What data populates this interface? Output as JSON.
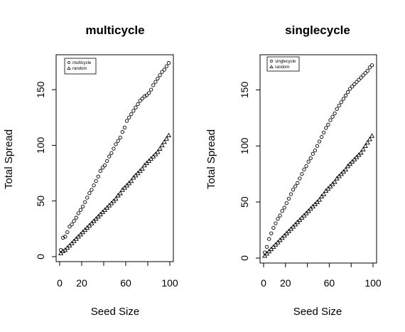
{
  "chart_data": [
    {
      "type": "scatter",
      "title": "multicycle",
      "xlabel": "Seed Size",
      "ylabel": "Total Spread",
      "xlim": [
        0,
        100
      ],
      "ylim": [
        0,
        175
      ],
      "xticks": [
        0,
        20,
        60,
        100
      ],
      "yticks": [
        0,
        50,
        100,
        150
      ],
      "legend_position": "top-left",
      "series": [
        {
          "name": "multicycle",
          "marker": "circle",
          "points": [
            [
              1,
              6
            ],
            [
              3,
              17
            ],
            [
              5,
              18
            ],
            [
              7,
              22
            ],
            [
              9,
              27
            ],
            [
              11,
              29
            ],
            [
              13,
              32
            ],
            [
              15,
              35
            ],
            [
              17,
              39
            ],
            [
              19,
              42
            ],
            [
              21,
              45
            ],
            [
              23,
              49
            ],
            [
              25,
              53
            ],
            [
              27,
              57
            ],
            [
              29,
              60
            ],
            [
              31,
              64
            ],
            [
              33,
              68
            ],
            [
              35,
              72
            ],
            [
              37,
              77
            ],
            [
              39,
              80
            ],
            [
              41,
              82
            ],
            [
              43,
              86
            ],
            [
              45,
              90
            ],
            [
              47,
              93
            ],
            [
              49,
              97
            ],
            [
              51,
              101
            ],
            [
              53,
              104
            ],
            [
              55,
              107
            ],
            [
              57,
              112
            ],
            [
              59,
              116
            ],
            [
              61,
              122
            ],
            [
              63,
              125
            ],
            [
              65,
              128
            ],
            [
              67,
              131
            ],
            [
              69,
              134
            ],
            [
              71,
              137
            ],
            [
              73,
              140
            ],
            [
              75,
              142
            ],
            [
              77,
              144
            ],
            [
              79,
              145
            ],
            [
              81,
              147
            ],
            [
              83,
              150
            ],
            [
              85,
              154
            ],
            [
              87,
              157
            ],
            [
              89,
              160
            ],
            [
              91,
              163
            ],
            [
              93,
              166
            ],
            [
              95,
              168
            ],
            [
              97,
              171
            ],
            [
              99,
              174
            ]
          ]
        },
        {
          "name": "random",
          "marker": "triangle",
          "points": [
            [
              1,
              3
            ],
            [
              3,
              5
            ],
            [
              5,
              6
            ],
            [
              7,
              8
            ],
            [
              9,
              10
            ],
            [
              11,
              12
            ],
            [
              13,
              14
            ],
            [
              15,
              16
            ],
            [
              17,
              18
            ],
            [
              19,
              20
            ],
            [
              21,
              22
            ],
            [
              23,
              24
            ],
            [
              25,
              26
            ],
            [
              27,
              28
            ],
            [
              29,
              30
            ],
            [
              31,
              32
            ],
            [
              33,
              34
            ],
            [
              35,
              36
            ],
            [
              37,
              38
            ],
            [
              39,
              40
            ],
            [
              41,
              42
            ],
            [
              43,
              44
            ],
            [
              45,
              46
            ],
            [
              47,
              48
            ],
            [
              49,
              50
            ],
            [
              51,
              52
            ],
            [
              53,
              55
            ],
            [
              55,
              57
            ],
            [
              57,
              60
            ],
            [
              59,
              62
            ],
            [
              61,
              64
            ],
            [
              63,
              66
            ],
            [
              65,
              68
            ],
            [
              67,
              71
            ],
            [
              69,
              73
            ],
            [
              71,
              75
            ],
            [
              73,
              77
            ],
            [
              75,
              79
            ],
            [
              77,
              82
            ],
            [
              79,
              84
            ],
            [
              81,
              86
            ],
            [
              83,
              88
            ],
            [
              85,
              90
            ],
            [
              87,
              92
            ],
            [
              89,
              94
            ],
            [
              91,
              97
            ],
            [
              93,
              100
            ],
            [
              95,
              103
            ],
            [
              97,
              106
            ],
            [
              99,
              109
            ]
          ]
        }
      ]
    },
    {
      "type": "scatter",
      "title": "singlecycle",
      "xlabel": "Seed Size",
      "ylabel": "Total Spread",
      "xlim": [
        0,
        100
      ],
      "ylim": [
        0,
        175
      ],
      "xticks": [
        0,
        20,
        60,
        100
      ],
      "yticks": [
        0,
        50,
        100,
        150
      ],
      "legend_position": "top-left",
      "series": [
        {
          "name": "singlecycle",
          "marker": "circle",
          "points": [
            [
              1,
              5
            ],
            [
              3,
              10
            ],
            [
              5,
              17
            ],
            [
              7,
              22
            ],
            [
              9,
              27
            ],
            [
              11,
              31
            ],
            [
              13,
              35
            ],
            [
              15,
              38
            ],
            [
              17,
              42
            ],
            [
              19,
              45
            ],
            [
              21,
              49
            ],
            [
              23,
              53
            ],
            [
              25,
              57
            ],
            [
              27,
              61
            ],
            [
              29,
              64
            ],
            [
              31,
              67
            ],
            [
              33,
              71
            ],
            [
              35,
              75
            ],
            [
              37,
              79
            ],
            [
              39,
              82
            ],
            [
              41,
              86
            ],
            [
              43,
              89
            ],
            [
              45,
              93
            ],
            [
              47,
              96
            ],
            [
              49,
              100
            ],
            [
              51,
              104
            ],
            [
              53,
              108
            ],
            [
              55,
              112
            ],
            [
              57,
              116
            ],
            [
              59,
              119
            ],
            [
              61,
              123
            ],
            [
              63,
              126
            ],
            [
              65,
              129
            ],
            [
              67,
              133
            ],
            [
              69,
              136
            ],
            [
              71,
              139
            ],
            [
              73,
              142
            ],
            [
              75,
              145
            ],
            [
              77,
              148
            ],
            [
              79,
              151
            ],
            [
              81,
              153
            ],
            [
              83,
              155
            ],
            [
              85,
              157
            ],
            [
              87,
              159
            ],
            [
              89,
              161
            ],
            [
              91,
              163
            ],
            [
              93,
              165
            ],
            [
              95,
              167
            ],
            [
              97,
              170
            ],
            [
              99,
              172
            ]
          ]
        },
        {
          "name": "random",
          "marker": "triangle",
          "points": [
            [
              1,
              2
            ],
            [
              3,
              4
            ],
            [
              5,
              6
            ],
            [
              7,
              8
            ],
            [
              9,
              10
            ],
            [
              11,
              12
            ],
            [
              13,
              14
            ],
            [
              15,
              16
            ],
            [
              17,
              18
            ],
            [
              19,
              20
            ],
            [
              21,
              22
            ],
            [
              23,
              24
            ],
            [
              25,
              26
            ],
            [
              27,
              28
            ],
            [
              29,
              30
            ],
            [
              31,
              32
            ],
            [
              33,
              34
            ],
            [
              35,
              36
            ],
            [
              37,
              38
            ],
            [
              39,
              40
            ],
            [
              41,
              42
            ],
            [
              43,
              44
            ],
            [
              45,
              46
            ],
            [
              47,
              48
            ],
            [
              49,
              50
            ],
            [
              51,
              52
            ],
            [
              53,
              55
            ],
            [
              55,
              57
            ],
            [
              57,
              60
            ],
            [
              59,
              62
            ],
            [
              61,
              64
            ],
            [
              63,
              66
            ],
            [
              65,
              68
            ],
            [
              67,
              71
            ],
            [
              69,
              73
            ],
            [
              71,
              75
            ],
            [
              73,
              77
            ],
            [
              75,
              79
            ],
            [
              77,
              82
            ],
            [
              79,
              84
            ],
            [
              81,
              86
            ],
            [
              83,
              88
            ],
            [
              85,
              90
            ],
            [
              87,
              92
            ],
            [
              89,
              94
            ],
            [
              91,
              97
            ],
            [
              93,
              100
            ],
            [
              95,
              103
            ],
            [
              97,
              106
            ],
            [
              99,
              109
            ]
          ]
        }
      ]
    }
  ]
}
